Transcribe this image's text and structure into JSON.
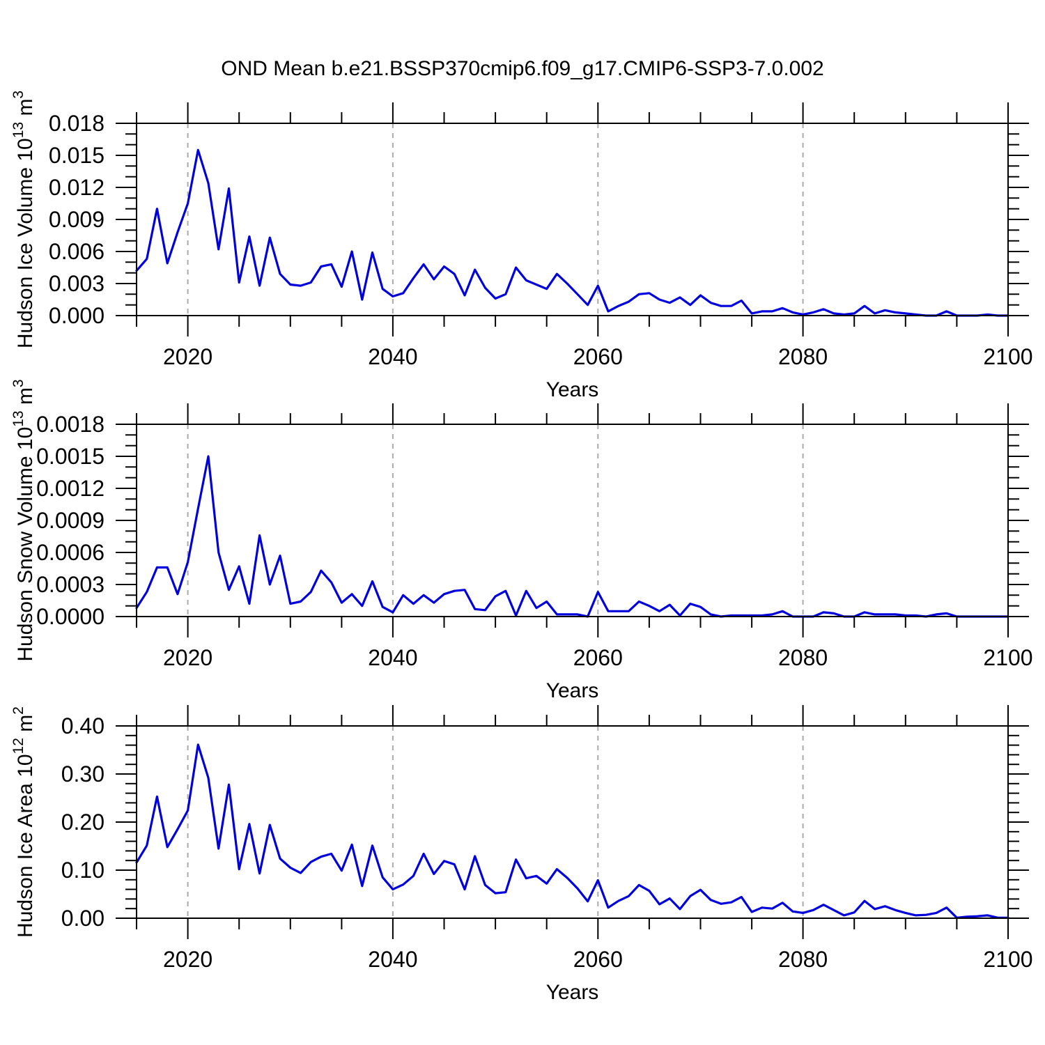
{
  "title": "OND Mean b.e21.BSSP370cmip6.f09_g17.CMIP6-SSP3-7.0.002",
  "colors": {
    "line": "#0000dd",
    "grid": "#aaaaaa",
    "frame": "#000000",
    "text": "#000000",
    "background": "#ffffff"
  },
  "chart_data": [
    {
      "type": "line",
      "name": "hudson-ice-volume",
      "ylabel_text": "Hudson Ice Volume",
      "ylabel_base": "10",
      "ylabel_exp": "13",
      "ylabel_unit": "m",
      "ylabel_unit_exp": "3",
      "xlabel": "Years",
      "xlim": [
        2015,
        2100
      ],
      "ylim": [
        0,
        0.018
      ],
      "grid": "vertical-dashed",
      "legend": "none",
      "y_major_ticks": [
        {
          "v": 0.0,
          "label": "0.000"
        },
        {
          "v": 0.003,
          "label": "0.003"
        },
        {
          "v": 0.006,
          "label": "0.006"
        },
        {
          "v": 0.009,
          "label": "0.009"
        },
        {
          "v": 0.012,
          "label": "0.012"
        },
        {
          "v": 0.015,
          "label": "0.015"
        },
        {
          "v": 0.018,
          "label": "0.018"
        }
      ],
      "y_minor_step": 0.001,
      "x_major_ticks": [
        {
          "v": 2020,
          "label": "2020"
        },
        {
          "v": 2040,
          "label": "2040"
        },
        {
          "v": 2060,
          "label": "2060"
        },
        {
          "v": 2080,
          "label": "2080"
        },
        {
          "v": 2100,
          "label": "2100"
        }
      ],
      "x_minor_step": 5,
      "gridline_years": [
        2020,
        2040,
        2060,
        2080
      ],
      "years": [
        2015,
        2016,
        2017,
        2018,
        2019,
        2020,
        2021,
        2022,
        2023,
        2024,
        2025,
        2026,
        2027,
        2028,
        2029,
        2030,
        2031,
        2032,
        2033,
        2034,
        2035,
        2036,
        2037,
        2038,
        2039,
        2040,
        2041,
        2042,
        2043,
        2044,
        2045,
        2046,
        2047,
        2048,
        2049,
        2050,
        2051,
        2052,
        2053,
        2054,
        2055,
        2056,
        2057,
        2058,
        2059,
        2060,
        2061,
        2062,
        2063,
        2064,
        2065,
        2066,
        2067,
        2068,
        2069,
        2070,
        2071,
        2072,
        2073,
        2074,
        2075,
        2076,
        2077,
        2078,
        2079,
        2080,
        2081,
        2082,
        2083,
        2084,
        2085,
        2086,
        2087,
        2088,
        2089,
        2090,
        2091,
        2092,
        2093,
        2094,
        2095,
        2096,
        2097,
        2098,
        2099,
        2100
      ],
      "values": [
        0.0042,
        0.0053,
        0.01,
        0.0049,
        0.0078,
        0.0105,
        0.0155,
        0.0124,
        0.0062,
        0.0119,
        0.0031,
        0.0074,
        0.0028,
        0.0073,
        0.0039,
        0.0029,
        0.0028,
        0.0031,
        0.0046,
        0.0048,
        0.0027,
        0.006,
        0.0015,
        0.0059,
        0.0025,
        0.0018,
        0.0021,
        0.0035,
        0.0048,
        0.0034,
        0.0046,
        0.0039,
        0.0019,
        0.0043,
        0.0026,
        0.0016,
        0.002,
        0.0045,
        0.0033,
        0.0029,
        0.0025,
        0.0039,
        0.003,
        0.002,
        0.001,
        0.0028,
        0.0004,
        0.0009,
        0.0013,
        0.002,
        0.0021,
        0.0015,
        0.0012,
        0.0017,
        0.001,
        0.0019,
        0.0012,
        0.0009,
        0.0009,
        0.0014,
        0.0002,
        0.0004,
        0.0004,
        0.0007,
        0.0003,
        0.0001,
        0.0003,
        0.0006,
        0.0002,
        0.0001,
        0.0002,
        0.0009,
        0.0002,
        0.0005,
        0.0003,
        0.0002,
        0.0001,
        0.0,
        0.0,
        0.0004,
        0.0,
        0.0,
        0.0,
        0.0001,
        0.0,
        0.0
      ]
    },
    {
      "type": "line",
      "name": "hudson-snow-volume",
      "ylabel_text": "Hudson Snow Volume",
      "ylabel_base": "10",
      "ylabel_exp": "13",
      "ylabel_unit": "m",
      "ylabel_unit_exp": "3",
      "xlabel": "Years",
      "xlim": [
        2015,
        2100
      ],
      "ylim": [
        0,
        0.0018
      ],
      "grid": "vertical-dashed",
      "legend": "none",
      "y_major_ticks": [
        {
          "v": 0.0,
          "label": "0.0000"
        },
        {
          "v": 0.0003,
          "label": "0.0003"
        },
        {
          "v": 0.0006,
          "label": "0.0006"
        },
        {
          "v": 0.0009,
          "label": "0.0009"
        },
        {
          "v": 0.0012,
          "label": "0.0012"
        },
        {
          "v": 0.0015,
          "label": "0.0015"
        },
        {
          "v": 0.0018,
          "label": "0.0018"
        }
      ],
      "y_minor_step": 0.0001,
      "x_major_ticks": [
        {
          "v": 2020,
          "label": "2020"
        },
        {
          "v": 2040,
          "label": "2040"
        },
        {
          "v": 2060,
          "label": "2060"
        },
        {
          "v": 2080,
          "label": "2080"
        },
        {
          "v": 2100,
          "label": "2100"
        }
      ],
      "x_minor_step": 5,
      "gridline_years": [
        2020,
        2040,
        2060,
        2080
      ],
      "years": [
        2015,
        2016,
        2017,
        2018,
        2019,
        2020,
        2021,
        2022,
        2023,
        2024,
        2025,
        2026,
        2027,
        2028,
        2029,
        2030,
        2031,
        2032,
        2033,
        2034,
        2035,
        2036,
        2037,
        2038,
        2039,
        2040,
        2041,
        2042,
        2043,
        2044,
        2045,
        2046,
        2047,
        2048,
        2049,
        2050,
        2051,
        2052,
        2053,
        2054,
        2055,
        2056,
        2057,
        2058,
        2059,
        2060,
        2061,
        2062,
        2063,
        2064,
        2065,
        2066,
        2067,
        2068,
        2069,
        2070,
        2071,
        2072,
        2073,
        2074,
        2075,
        2076,
        2077,
        2078,
        2079,
        2080,
        2081,
        2082,
        2083,
        2084,
        2085,
        2086,
        2087,
        2088,
        2089,
        2090,
        2091,
        2092,
        2093,
        2094,
        2095,
        2096,
        2097,
        2098,
        2099,
        2100
      ],
      "values": [
        8e-05,
        0.00023,
        0.00046,
        0.00046,
        0.00021,
        0.00051,
        0.00101,
        0.0015,
        0.0006,
        0.00025,
        0.00047,
        0.00012,
        0.00076,
        0.0003,
        0.00057,
        0.00012,
        0.00014,
        0.00023,
        0.00043,
        0.00032,
        0.00013,
        0.00021,
        0.0001,
        0.00033,
        9e-05,
        4e-05,
        0.0002,
        0.00012,
        0.0002,
        0.00013,
        0.00021,
        0.00024,
        0.00025,
        7e-05,
        6e-05,
        0.00019,
        0.00024,
        1e-05,
        0.00024,
        8e-05,
        0.00014,
        2e-05,
        2e-05,
        2e-05,
        0.0,
        0.00023,
        5e-05,
        5e-05,
        5e-05,
        0.00014,
        0.0001,
        5e-05,
        0.00011,
        1e-05,
        0.00012,
        9e-05,
        2e-05,
        0.0,
        1e-05,
        1e-05,
        1e-05,
        1e-05,
        2e-05,
        5e-05,
        0.0,
        0.0,
        0.0,
        4e-05,
        3e-05,
        0.0,
        0.0,
        4e-05,
        2e-05,
        2e-05,
        2e-05,
        1e-05,
        1e-05,
        0.0,
        2e-05,
        3e-05,
        0.0,
        0.0,
        0.0,
        0.0,
        0.0,
        0.0
      ]
    },
    {
      "type": "line",
      "name": "hudson-ice-area",
      "ylabel_text": "Hudson Ice Area",
      "ylabel_base": "10",
      "ylabel_exp": "12",
      "ylabel_unit": "m",
      "ylabel_unit_exp": "2",
      "xlabel": "Years",
      "xlim": [
        2015,
        2100
      ],
      "ylim": [
        0,
        0.4
      ],
      "grid": "vertical-dashed",
      "legend": "none",
      "y_major_ticks": [
        {
          "v": 0.0,
          "label": "0.00"
        },
        {
          "v": 0.1,
          "label": "0.10"
        },
        {
          "v": 0.2,
          "label": "0.20"
        },
        {
          "v": 0.3,
          "label": "0.30"
        },
        {
          "v": 0.4,
          "label": "0.40"
        }
      ],
      "y_minor_step": 0.02,
      "x_major_ticks": [
        {
          "v": 2020,
          "label": "2020"
        },
        {
          "v": 2040,
          "label": "2040"
        },
        {
          "v": 2060,
          "label": "2060"
        },
        {
          "v": 2080,
          "label": "2080"
        },
        {
          "v": 2100,
          "label": "2100"
        }
      ],
      "x_minor_step": 5,
      "gridline_years": [
        2020,
        2040,
        2060,
        2080
      ],
      "years": [
        2015,
        2016,
        2017,
        2018,
        2019,
        2020,
        2021,
        2022,
        2023,
        2024,
        2025,
        2026,
        2027,
        2028,
        2029,
        2030,
        2031,
        2032,
        2033,
        2034,
        2035,
        2036,
        2037,
        2038,
        2039,
        2040,
        2041,
        2042,
        2043,
        2044,
        2045,
        2046,
        2047,
        2048,
        2049,
        2050,
        2051,
        2052,
        2053,
        2054,
        2055,
        2056,
        2057,
        2058,
        2059,
        2060,
        2061,
        2062,
        2063,
        2064,
        2065,
        2066,
        2067,
        2068,
        2069,
        2070,
        2071,
        2072,
        2073,
        2074,
        2075,
        2076,
        2077,
        2078,
        2079,
        2080,
        2081,
        2082,
        2083,
        2084,
        2085,
        2086,
        2087,
        2088,
        2089,
        2090,
        2091,
        2092,
        2093,
        2094,
        2095,
        2096,
        2097,
        2098,
        2099,
        2100
      ],
      "values": [
        0.116,
        0.151,
        0.253,
        0.148,
        0.185,
        0.224,
        0.361,
        0.292,
        0.145,
        0.278,
        0.102,
        0.196,
        0.093,
        0.194,
        0.124,
        0.105,
        0.094,
        0.117,
        0.128,
        0.134,
        0.099,
        0.153,
        0.067,
        0.151,
        0.085,
        0.06,
        0.07,
        0.088,
        0.134,
        0.092,
        0.119,
        0.112,
        0.06,
        0.129,
        0.069,
        0.052,
        0.054,
        0.122,
        0.083,
        0.088,
        0.072,
        0.102,
        0.084,
        0.062,
        0.035,
        0.079,
        0.022,
        0.036,
        0.046,
        0.069,
        0.057,
        0.029,
        0.041,
        0.019,
        0.046,
        0.059,
        0.038,
        0.03,
        0.033,
        0.044,
        0.013,
        0.022,
        0.02,
        0.032,
        0.014,
        0.011,
        0.017,
        0.028,
        0.017,
        0.006,
        0.012,
        0.036,
        0.019,
        0.025,
        0.017,
        0.011,
        0.006,
        0.007,
        0.011,
        0.022,
        0.001,
        0.003,
        0.004,
        0.006,
        0.001,
        0.001
      ]
    }
  ]
}
